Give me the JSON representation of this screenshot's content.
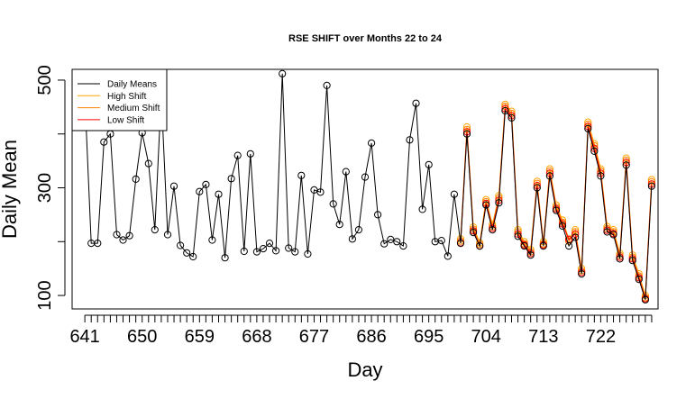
{
  "chart_data": {
    "type": "line",
    "title": "RSE SHIFT over Months 22 to 24",
    "xlabel": "Day",
    "ylabel": "Daily Mean",
    "xlim": [
      639,
      731
    ],
    "ylim": [
      75,
      520
    ],
    "x_ticks": [
      641,
      650,
      659,
      668,
      677,
      686,
      695,
      704,
      713,
      722
    ],
    "y_ticks": [
      100,
      300,
      500
    ],
    "legend": {
      "placement": "top-left",
      "entries": [
        {
          "label": "Daily Means",
          "color": "#000000"
        },
        {
          "label": "High Shift",
          "color": "#ffa500"
        },
        {
          "label": "Medium Shift",
          "color": "#ff7f00"
        },
        {
          "label": "Low Shift",
          "color": "#ff0000"
        }
      ]
    },
    "series": [
      {
        "name": "Daily Means",
        "color": "#000000",
        "x_start": 641,
        "values": [
          470,
          197,
          197,
          385,
          400,
          213,
          203,
          211,
          316,
          402,
          345,
          222,
          473,
          213,
          303,
          193,
          179,
          172,
          293,
          306,
          203,
          288,
          170,
          317,
          360,
          182,
          363,
          181,
          187,
          197,
          183,
          512,
          188,
          181,
          323,
          177,
          296,
          292,
          490,
          270,
          232,
          330,
          205,
          222,
          320,
          383,
          250,
          196,
          204,
          200,
          192,
          389,
          457,
          260,
          343,
          200,
          202,
          173,
          288,
          197,
          400,
          217,
          192,
          268,
          222,
          272,
          443,
          430,
          210,
          192,
          175,
          300,
          192,
          322,
          258,
          229,
          192,
          208,
          140,
          410,
          368,
          322,
          218,
          213,
          168,
          342,
          165,
          130,
          92,
          303
        ]
      },
      {
        "name": "High Shift",
        "color": "#ffa500",
        "x_start": 700,
        "values": [
          205,
          413,
          227,
          198,
          278,
          232,
          285,
          455,
          442,
          222,
          200,
          185,
          312,
          200,
          335,
          268,
          240,
          205,
          222,
          150,
          422,
          382,
          335,
          228,
          222,
          178,
          355,
          175,
          140,
          100,
          315
        ]
      },
      {
        "name": "Medium Shift",
        "color": "#ff7f00",
        "x_start": 700,
        "values": [
          201,
          408,
          223,
          195,
          274,
          228,
          281,
          451,
          438,
          218,
          196,
          181,
          308,
          196,
          331,
          264,
          236,
          201,
          218,
          146,
          418,
          378,
          331,
          224,
          218,
          174,
          351,
          171,
          136,
          96,
          311
        ]
      },
      {
        "name": "Low Shift",
        "color": "#ff0000",
        "x_start": 700,
        "values": [
          198,
          404,
          220,
          192,
          271,
          225,
          277,
          447,
          434,
          214,
          194,
          178,
          304,
          194,
          327,
          261,
          233,
          204,
          214,
          143,
          414,
          373,
          327,
          221,
          215,
          171,
          347,
          168,
          133,
          94,
          307
        ]
      }
    ]
  }
}
